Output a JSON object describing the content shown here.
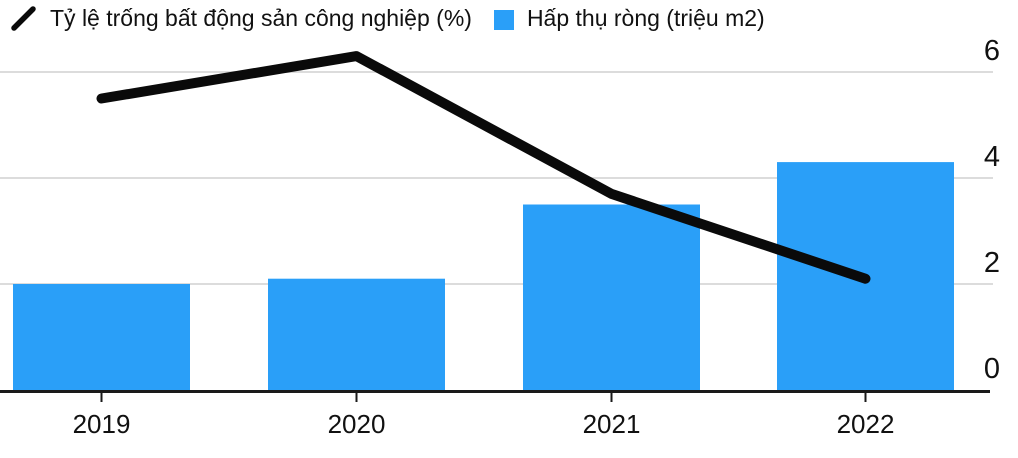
{
  "chart_data": {
    "type": "combo",
    "categories": [
      "2019",
      "2020",
      "2021",
      "2022"
    ],
    "series": [
      {
        "name": "Tỷ lệ trống bất động sản công nghiệp (%)",
        "type": "line",
        "color": "#0a0a0a",
        "values": [
          5.5,
          6.3,
          3.7,
          2.1
        ]
      },
      {
        "name": "Hấp thụ ròng (triệu m2)",
        "type": "bar",
        "color": "#2A9FF8",
        "values": [
          2.0,
          2.1,
          3.5,
          4.3
        ]
      }
    ],
    "title": "",
    "xlabel": "",
    "ylabel": "",
    "ylim": [
      0,
      6.6
    ],
    "yticks": [
      0,
      2,
      4,
      6
    ],
    "y_axis_side": "right",
    "grid": true,
    "legend_position": "top-left",
    "colors": {
      "grid": "#dcdcdc",
      "axis": "#1a1a1a",
      "tick": "#1a1a1a",
      "text": "#111111"
    }
  }
}
